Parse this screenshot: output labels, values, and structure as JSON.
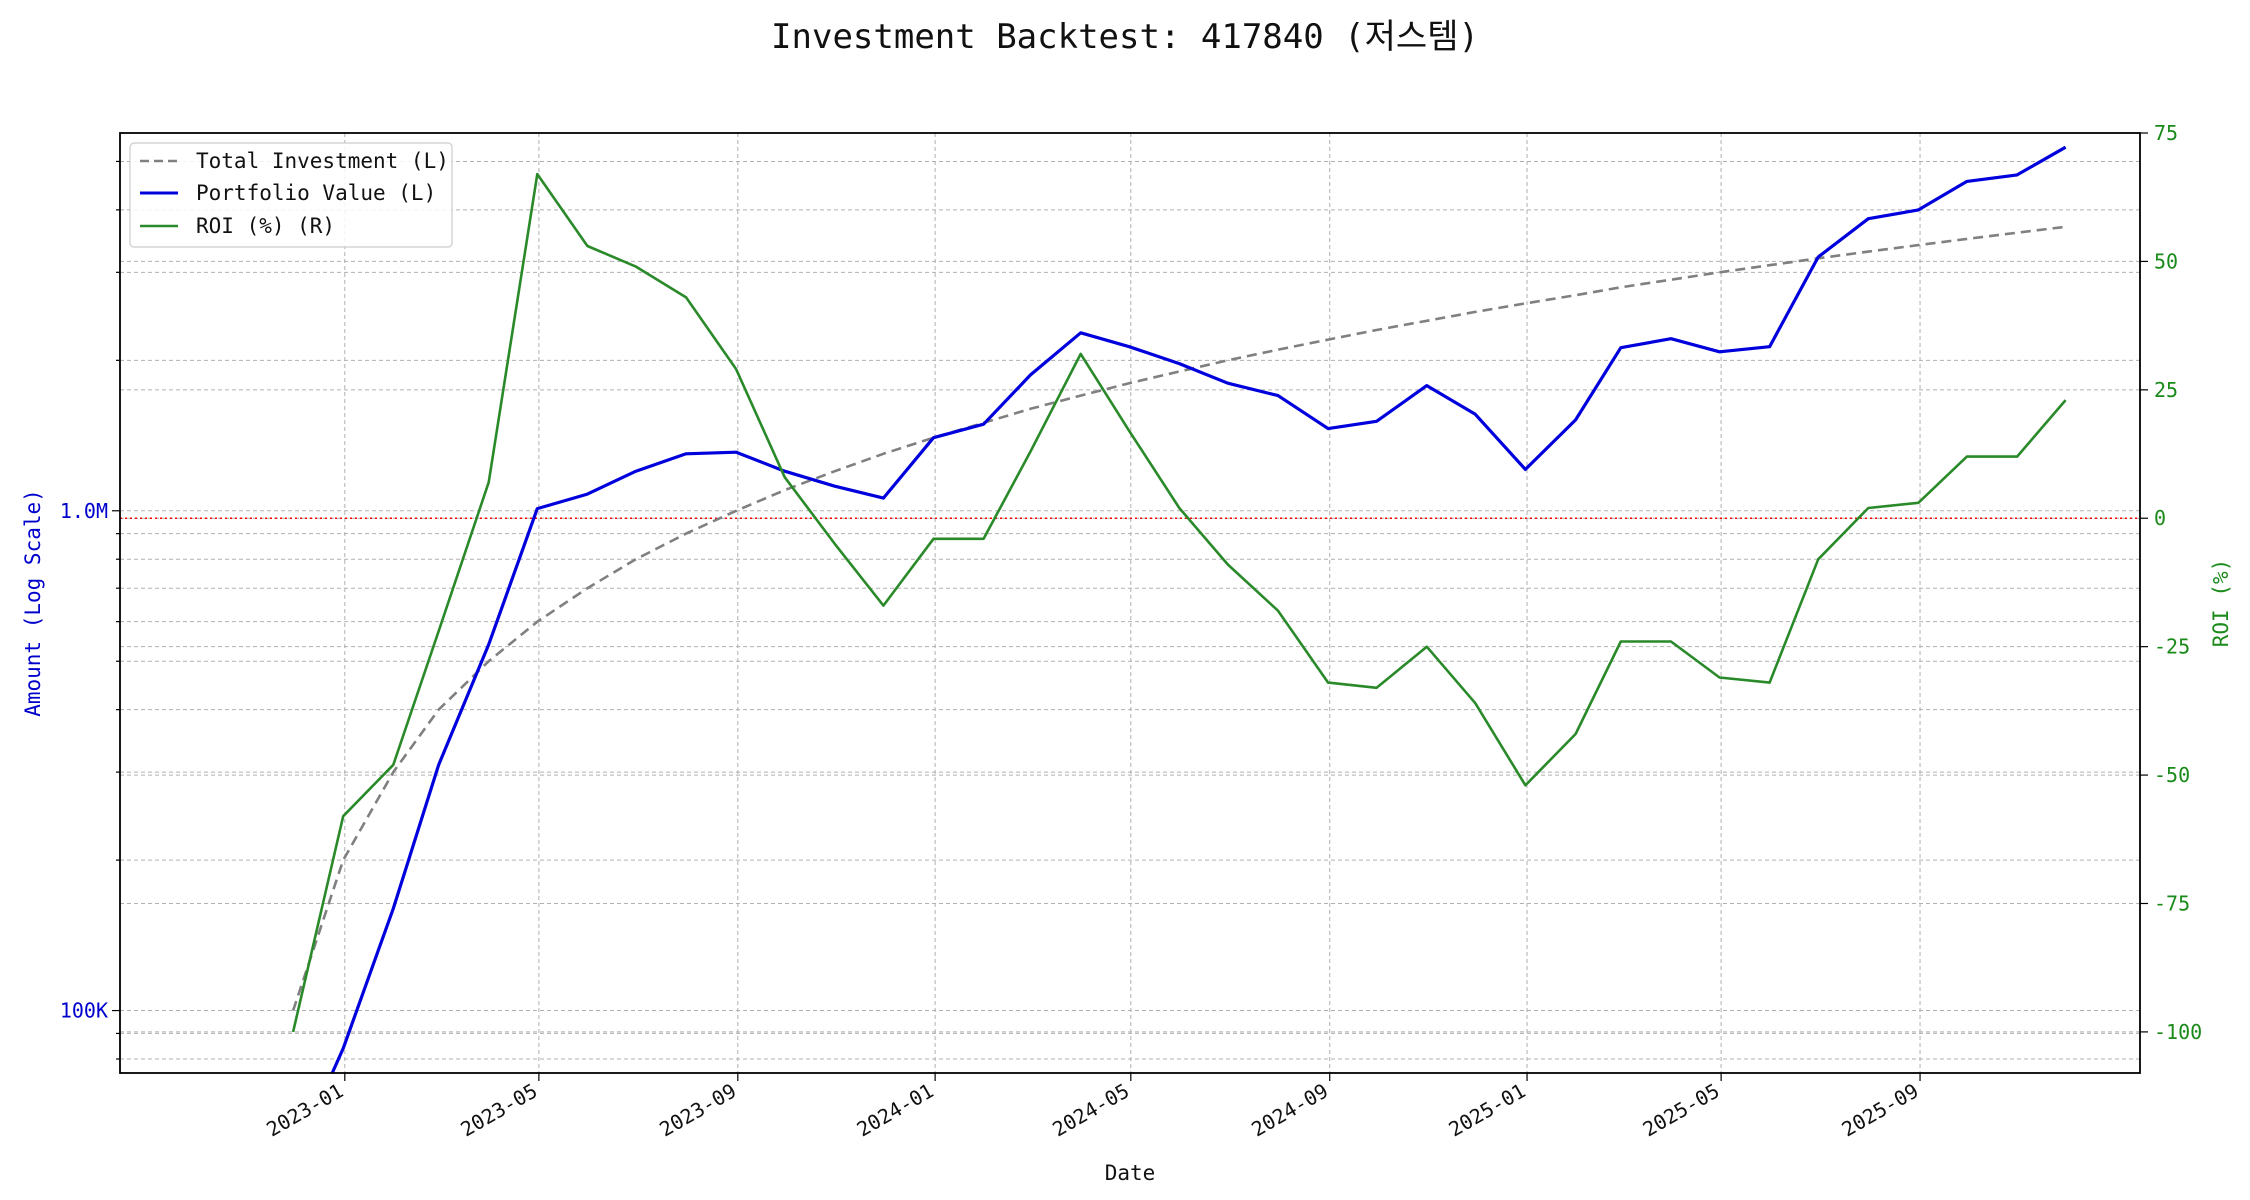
{
  "chart_data": {
    "type": "line",
    "title": "Investment Backtest: 417840 (저스템)",
    "xlabel": "Date",
    "ylabel_left": "Amount (Log Scale)",
    "ylabel_right": "ROI (%)",
    "y_left_scale": "log",
    "y_left_ticks": [
      {
        "value": 100000,
        "label": "100K"
      },
      {
        "value": 1000000,
        "label": "1.0M"
      }
    ],
    "y_left_range": [
      75000,
      5700000
    ],
    "y_right_range": [
      -108,
      75
    ],
    "y_right_ticks": [
      -100,
      -75,
      -50,
      -25,
      0,
      25,
      50,
      75
    ],
    "x_ticks": [
      "2023-01",
      "2023-05",
      "2023-09",
      "2024-01",
      "2024-05",
      "2024-09",
      "2025-01",
      "2025-05",
      "2025-09"
    ],
    "x_range": [
      "2022-08-15",
      "2026-01-15"
    ],
    "grid": true,
    "legend_position": "top-left",
    "reference_line": {
      "axis": "right",
      "value": 0,
      "color": "#ff0000",
      "style": "dotted"
    },
    "dates": [
      "2022-11-30",
      "2022-12-31",
      "2023-01-31",
      "2023-02-28",
      "2023-03-31",
      "2023-04-30",
      "2023-05-31",
      "2023-06-30",
      "2023-07-31",
      "2023-08-31",
      "2023-09-30",
      "2023-10-31",
      "2023-11-30",
      "2023-12-31",
      "2024-01-31",
      "2024-02-29",
      "2024-03-31",
      "2024-04-30",
      "2024-05-31",
      "2024-06-30",
      "2024-07-31",
      "2024-08-31",
      "2024-09-30",
      "2024-10-31",
      "2024-11-30",
      "2024-12-31",
      "2025-01-31",
      "2025-02-28",
      "2025-03-31",
      "2025-04-30",
      "2025-05-31",
      "2025-06-30",
      "2025-07-31",
      "2025-08-31",
      "2025-09-30",
      "2025-10-31",
      "2025-11-30"
    ],
    "series": [
      {
        "name": "Total Investment (L)",
        "axis": "left",
        "color": "#808080",
        "style": "dashed",
        "values": [
          100000,
          200000,
          300000,
          400000,
          500000,
          600000,
          700000,
          800000,
          900000,
          1000000,
          1100000,
          1200000,
          1300000,
          1400000,
          1500000,
          1600000,
          1700000,
          1800000,
          1900000,
          2000000,
          2100000,
          2200000,
          2300000,
          2400000,
          2500000,
          2600000,
          2700000,
          2800000,
          2900000,
          3000000,
          3100000,
          3200000,
          3300000,
          3400000,
          3500000,
          3600000,
          3700000
        ]
      },
      {
        "name": "Portfolio Value (L)",
        "axis": "left",
        "color": "#0000dd",
        "style": "solid",
        "values": [
          50000,
          84000,
          160000,
          310000,
          540000,
          1010000,
          1080000,
          1200000,
          1300000,
          1310000,
          1200000,
          1120000,
          1060000,
          1400000,
          1490000,
          1870000,
          2270000,
          2130000,
          1970000,
          1800000,
          1700000,
          1460000,
          1510000,
          1780000,
          1560000,
          1210000,
          1520000,
          2120000,
          2210000,
          2080000,
          2130000,
          3220000,
          3840000,
          4000000,
          4560000,
          4700000,
          5340000
        ]
      },
      {
        "name": "ROI (%) (R)",
        "axis": "right",
        "color": "#2a8a2a",
        "style": "solid",
        "values": [
          -100,
          -58,
          -48,
          -22,
          7,
          67,
          53,
          49,
          43,
          29,
          8,
          -5,
          -17,
          -4,
          -4,
          13,
          32,
          17,
          2,
          -9,
          -18,
          -32,
          -33,
          -25,
          -36,
          -52,
          -42,
          -24,
          -24,
          -31,
          -32,
          -8,
          2,
          3,
          12,
          12,
          23
        ]
      }
    ]
  }
}
